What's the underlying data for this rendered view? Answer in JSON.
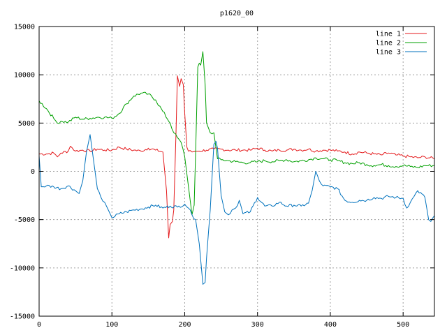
{
  "chart_data": {
    "type": "line",
    "title": "p1620_00",
    "xlabel": "",
    "ylabel": "",
    "xlim": [
      0,
      543
    ],
    "ylim": [
      -15000,
      15000
    ],
    "x_ticks": [
      0,
      100,
      200,
      300,
      400,
      500
    ],
    "y_ticks": [
      -15000,
      -10000,
      -5000,
      0,
      5000,
      10000,
      15000
    ],
    "grid": true,
    "legend_position": "top-right",
    "series": [
      {
        "name": "line 1",
        "color": "#e41a1c",
        "x": [
          0,
          10,
          20,
          25,
          30,
          40,
          43,
          50,
          60,
          70,
          80,
          90,
          100,
          110,
          120,
          130,
          140,
          150,
          160,
          170,
          175,
          178,
          180,
          183,
          185,
          188,
          190,
          193,
          195,
          198,
          200,
          203,
          205,
          210,
          215,
          220,
          230,
          240,
          250,
          260,
          270,
          280,
          290,
          300,
          310,
          320,
          330,
          340,
          350,
          360,
          370,
          380,
          390,
          400,
          410,
          420,
          430,
          440,
          450,
          460,
          470,
          480,
          490,
          500,
          510,
          520,
          530,
          543
        ],
        "y": [
          1800,
          1800,
          1900,
          1500,
          1900,
          2100,
          2600,
          2100,
          2200,
          2100,
          2300,
          2200,
          2200,
          2500,
          2300,
          2200,
          2100,
          2400,
          2200,
          2000,
          -2000,
          -6900,
          -5500,
          -5200,
          -4000,
          4000,
          9900,
          8800,
          9600,
          9000,
          6000,
          2500,
          2100,
          2000,
          2100,
          2100,
          2200,
          2300,
          2300,
          2200,
          2200,
          2200,
          2200,
          2400,
          2200,
          2100,
          2200,
          2200,
          2300,
          2200,
          2300,
          2100,
          2200,
          2200,
          2100,
          2000,
          1800,
          2000,
          1900,
          1800,
          1700,
          1900,
          1700,
          1600,
          1500,
          1400,
          1500,
          1300
        ]
      },
      {
        "name": "line 2",
        "color": "#00a000",
        "x": [
          0,
          10,
          20,
          25,
          30,
          40,
          50,
          60,
          70,
          80,
          90,
          100,
          110,
          120,
          130,
          140,
          150,
          160,
          170,
          180,
          185,
          190,
          195,
          200,
          205,
          210,
          213,
          215,
          218,
          220,
          222,
          225,
          228,
          230,
          235,
          240,
          245,
          250,
          260,
          270,
          280,
          290,
          300,
          310,
          320,
          330,
          340,
          350,
          360,
          370,
          380,
          390,
          400,
          410,
          420,
          430,
          440,
          450,
          460,
          470,
          480,
          490,
          500,
          510,
          520,
          530,
          543
        ],
        "y": [
          7300,
          6500,
          5500,
          5000,
          5200,
          5100,
          5600,
          5400,
          5500,
          5600,
          5600,
          5500,
          6000,
          7000,
          7800,
          8100,
          8000,
          7400,
          6200,
          5000,
          4000,
          3500,
          3000,
          1500,
          -1500,
          -4500,
          -3500,
          2000,
          10800,
          11200,
          11000,
          12400,
          9000,
          5000,
          4000,
          4000,
          1300,
          1200,
          1100,
          1000,
          900,
          900,
          1000,
          1100,
          1000,
          1100,
          1200,
          1000,
          1100,
          1200,
          1400,
          1300,
          1200,
          1100,
          900,
          800,
          900,
          700,
          600,
          700,
          600,
          500,
          600,
          500,
          400,
          600,
          600
        ]
      },
      {
        "name": "line 3",
        "color": "#0072bd",
        "x": [
          0,
          3,
          10,
          20,
          30,
          40,
          50,
          55,
          60,
          65,
          70,
          75,
          80,
          85,
          90,
          100,
          110,
          120,
          130,
          140,
          150,
          160,
          170,
          180,
          190,
          200,
          205,
          210,
          215,
          220,
          225,
          228,
          230,
          235,
          240,
          243,
          245,
          250,
          255,
          260,
          265,
          270,
          275,
          280,
          290,
          300,
          310,
          320,
          330,
          340,
          350,
          360,
          370,
          375,
          380,
          385,
          390,
          400,
          410,
          420,
          430,
          440,
          450,
          460,
          470,
          480,
          490,
          500,
          505,
          510,
          515,
          520,
          530,
          535,
          538,
          543
        ],
        "y": [
          1600,
          -1600,
          -1500,
          -1600,
          -1800,
          -1500,
          -2000,
          -2300,
          -1000,
          2000,
          3800,
          1000,
          -1800,
          -2700,
          -3200,
          -4800,
          -4400,
          -4200,
          -4000,
          -3900,
          -3700,
          -3500,
          -3800,
          -3600,
          -3700,
          -3400,
          -3800,
          -4500,
          -5000,
          -7500,
          -11700,
          -11500,
          -9000,
          -4000,
          2800,
          3100,
          2400,
          -2500,
          -4200,
          -4500,
          -4000,
          -3800,
          -3000,
          -4400,
          -4200,
          -2700,
          -3600,
          -3600,
          -3200,
          -3600,
          -3500,
          -3600,
          -3300,
          -2000,
          0,
          -1000,
          -1500,
          -1600,
          -1800,
          -3000,
          -3200,
          -3000,
          -3000,
          -2700,
          -2800,
          -2600,
          -2700,
          -2800,
          -3800,
          -3200,
          -2600,
          -2000,
          -2700,
          -5000,
          -5200,
          -4600
        ]
      }
    ]
  }
}
